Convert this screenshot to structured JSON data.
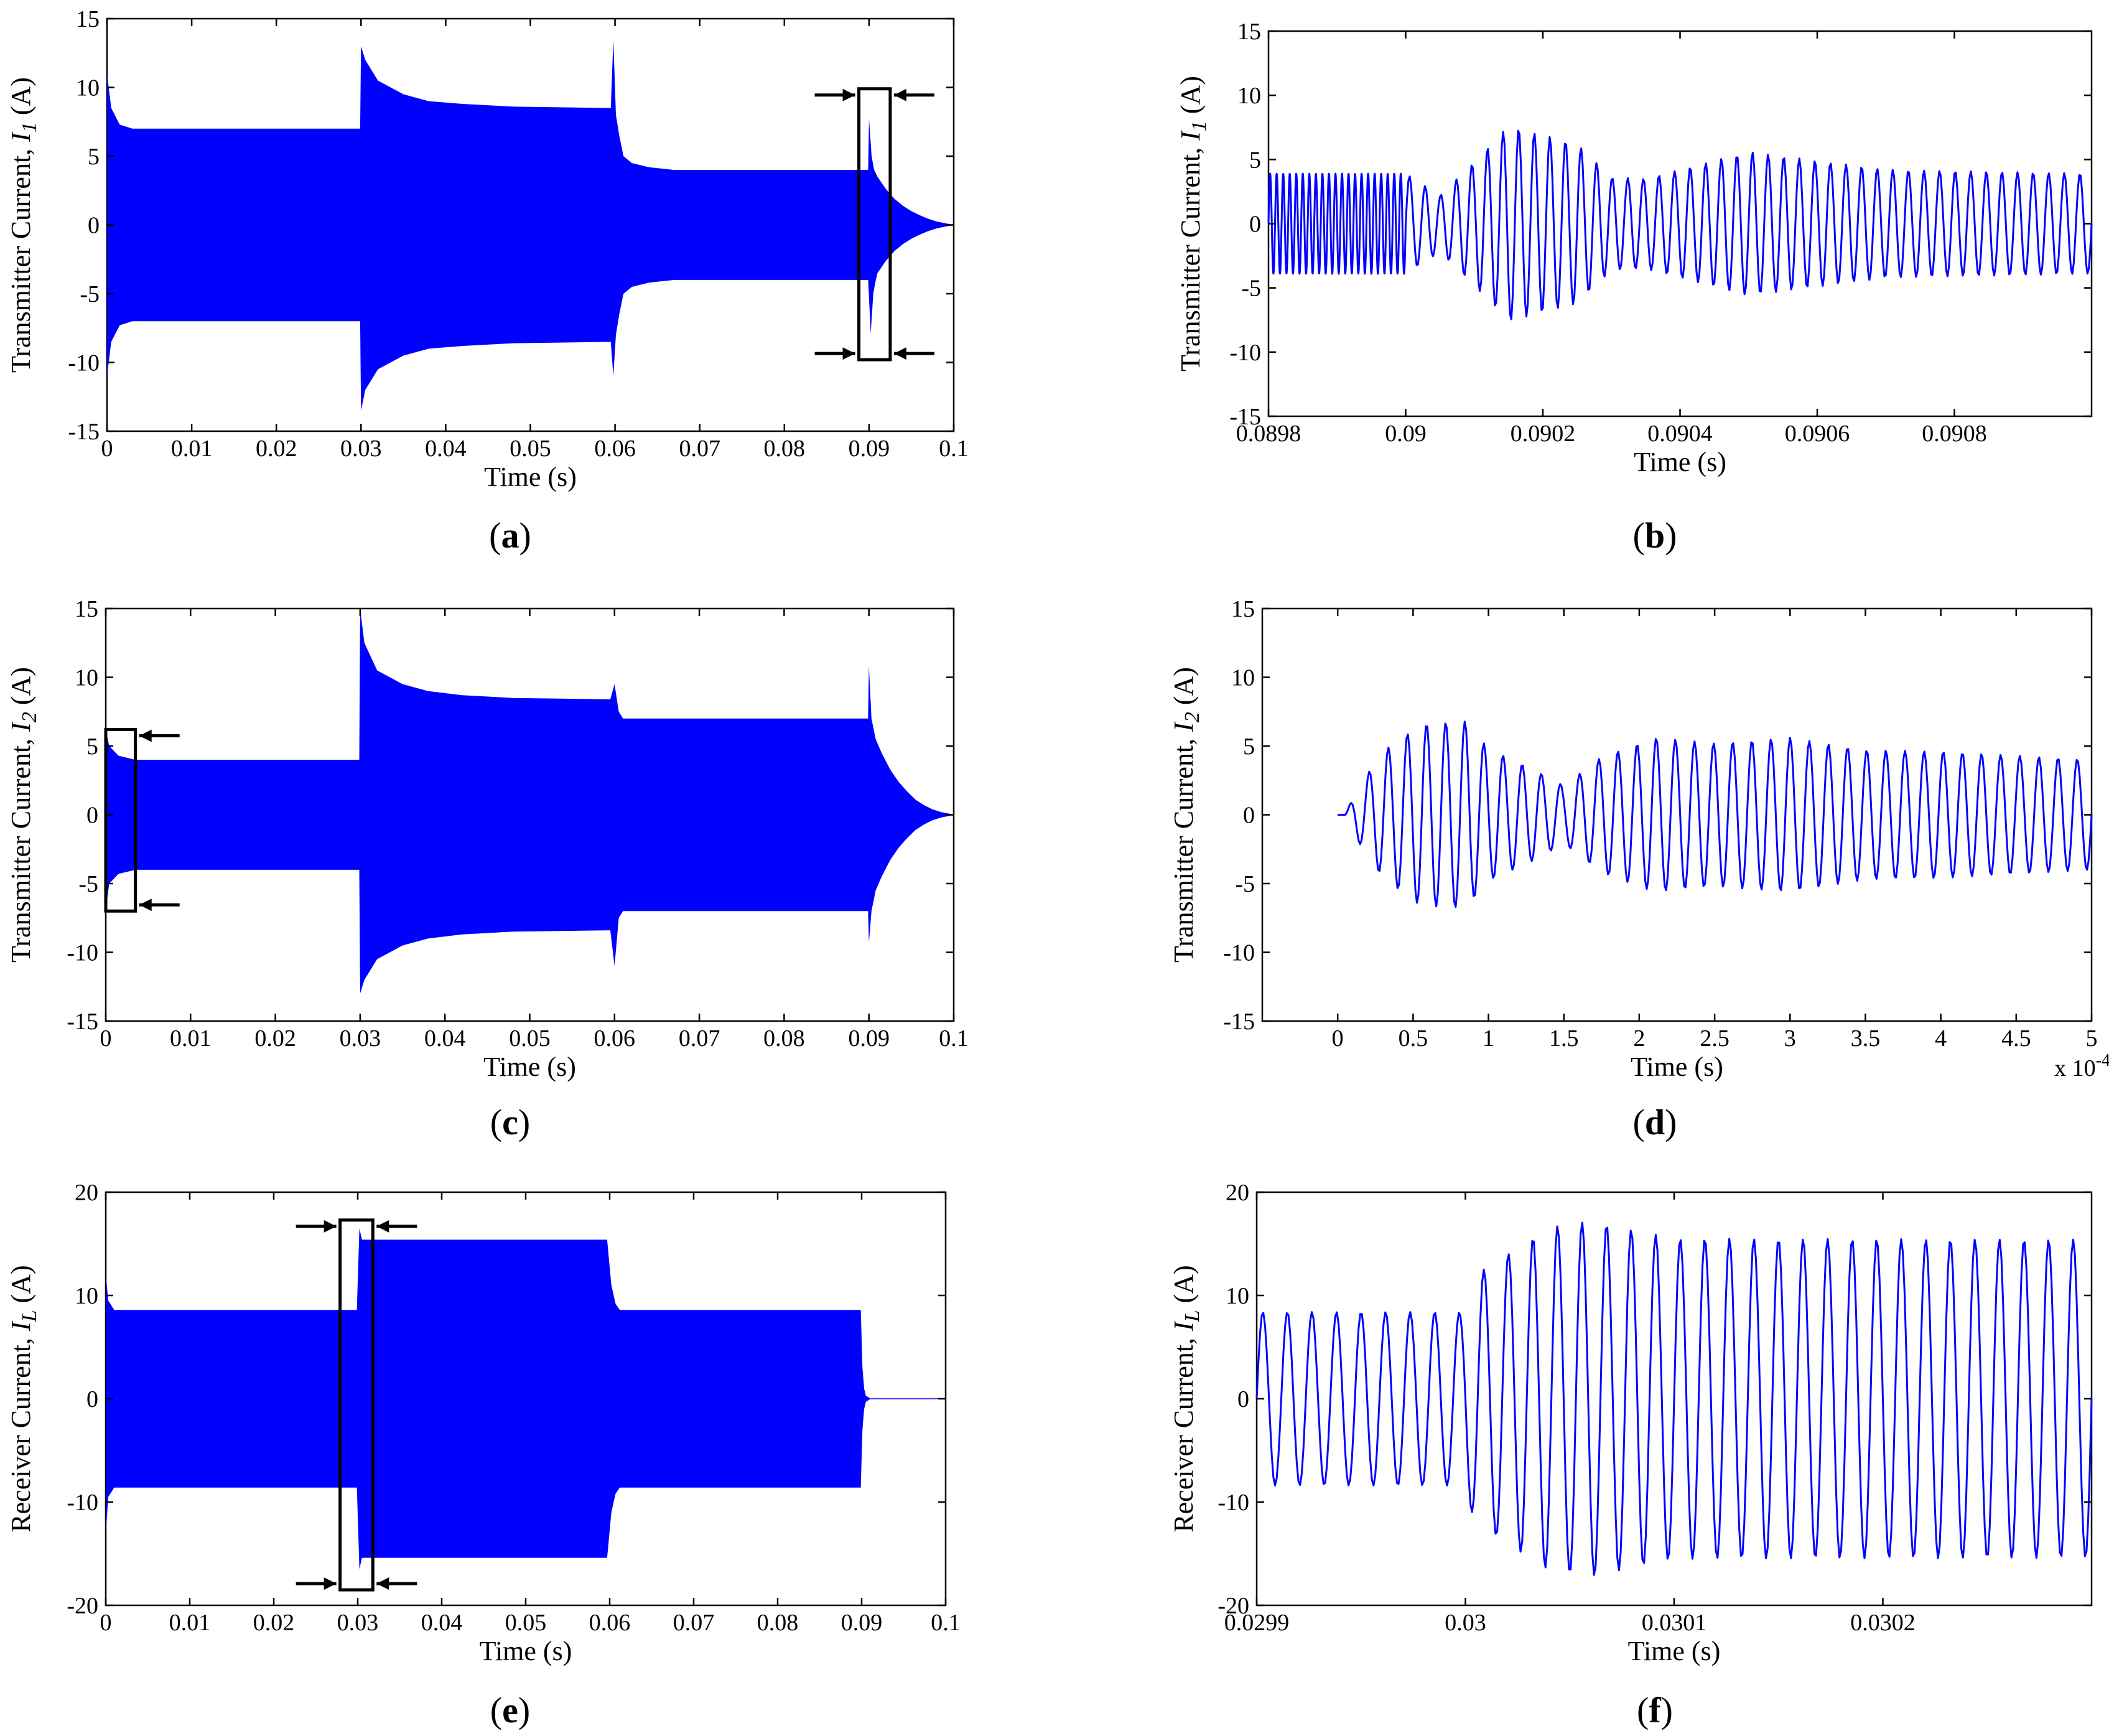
{
  "figure": {
    "colors": {
      "signal": "#0000ff",
      "axes": "#000000",
      "background": "#ffffff"
    }
  },
  "chart_data": [
    {
      "id": "a",
      "type": "line",
      "panel_label": "a",
      "title": "",
      "xlabel": "Time (s)",
      "ylabel_main": "Transmitter Current, ",
      "ylabel_var": "I",
      "ylabel_sub": "1",
      "ylabel_unit": " (A)",
      "xlim": [
        0,
        0.1
      ],
      "ylim": [
        -15,
        15
      ],
      "xticks": [
        0,
        0.01,
        0.02,
        0.03,
        0.04,
        0.05,
        0.06,
        0.07,
        0.08,
        0.09,
        0.1
      ],
      "xtick_labels": [
        "0",
        "0.01",
        "0.02",
        "0.03",
        "0.04",
        "0.05",
        "0.06",
        "0.07",
        "0.08",
        "0.09",
        "0.1"
      ],
      "yticks": [
        -15,
        -10,
        -5,
        0,
        5,
        10,
        15
      ],
      "ytick_labels": [
        "-15",
        "-10",
        "-5",
        "0",
        "5",
        "10",
        "15"
      ],
      "series": [
        {
          "name": "upper envelope",
          "x": [
            0,
            0.0005,
            0.0015,
            0.003,
            0.0299,
            0.03,
            0.0305,
            0.032,
            0.035,
            0.038,
            0.042,
            0.048,
            0.0595,
            0.0598,
            0.0601,
            0.0605,
            0.061,
            0.062,
            0.064,
            0.067,
            0.0899,
            0.09,
            0.0903,
            0.0906,
            0.091,
            0.092,
            0.093,
            0.094,
            0.095,
            0.096,
            0.097,
            0.098,
            0.099,
            0.1
          ],
          "values": [
            11,
            8.5,
            7.3,
            7,
            7,
            13,
            12,
            10.5,
            9.5,
            9,
            8.8,
            8.6,
            8.5,
            13.5,
            8,
            6.5,
            5,
            4.5,
            4.2,
            4,
            4,
            7.7,
            5,
            4,
            3.5,
            2.6,
            1.9,
            1.4,
            1,
            0.7,
            0.45,
            0.25,
            0.12,
            0
          ]
        },
        {
          "name": "lower envelope",
          "x": [
            0,
            0.0005,
            0.0015,
            0.003,
            0.0299,
            0.03,
            0.0305,
            0.032,
            0.035,
            0.038,
            0.042,
            0.048,
            0.0595,
            0.0598,
            0.0601,
            0.0605,
            0.061,
            0.062,
            0.064,
            0.067,
            0.0899,
            0.0902,
            0.0905,
            0.0908,
            0.091,
            0.092,
            0.093,
            0.094,
            0.095,
            0.096,
            0.097,
            0.098,
            0.099,
            0.1
          ],
          "values": [
            -11,
            -8.5,
            -7.3,
            -7,
            -7,
            -13.5,
            -12,
            -10.5,
            -9.5,
            -9,
            -8.8,
            -8.6,
            -8.5,
            -11,
            -8,
            -6.5,
            -5,
            -4.5,
            -4.2,
            -4,
            -4,
            -7.9,
            -5,
            -4,
            -3.5,
            -2.6,
            -1.9,
            -1.4,
            -1,
            -0.7,
            -0.45,
            -0.25,
            -0.12,
            0
          ]
        }
      ],
      "zoom_box": {
        "x": [
          0.0888,
          0.0925
        ],
        "y": [
          -9.8,
          9.9
        ]
      }
    },
    {
      "id": "b",
      "type": "line",
      "panel_label": "b",
      "title": "",
      "xlabel": "Time (s)",
      "ylabel_main": "Transmitter Current, ",
      "ylabel_var": "I",
      "ylabel_sub": "1",
      "ylabel_unit": " (A)",
      "xlim": [
        0.0898,
        0.091
      ],
      "ylim": [
        -15,
        15
      ],
      "xticks": [
        0.0898,
        0.09,
        0.0902,
        0.0904,
        0.0906,
        0.0908
      ],
      "xtick_labels": [
        "0.0898",
        "0.09",
        "0.0902",
        "0.0904",
        "0.0906",
        "0.0908"
      ],
      "yticks": [
        -15,
        -10,
        -5,
        0,
        5,
        10,
        15
      ],
      "ytick_labels": [
        "-15",
        "-10",
        "-5",
        "0",
        "5",
        "10",
        "15"
      ],
      "signal": {
        "t0": 0.0898,
        "t1": 0.091,
        "segments": [
          {
            "t_start": 0.0898,
            "t_end": 0.09,
            "cycles": 21,
            "amp": [
              [
                0.0898,
                3.9
              ],
              [
                0.09,
                3.9
              ]
            ]
          },
          {
            "t_start": 0.09,
            "t_end": 0.091,
            "cycles": 44,
            "amp": [
              [
                0.09,
                3.9
              ],
              [
                0.09005,
                2.2
              ],
              [
                0.0901,
                4.8
              ],
              [
                0.09015,
                7.6
              ],
              [
                0.09025,
                6.2
              ],
              [
                0.0903,
                3.6
              ],
              [
                0.09035,
                3.5
              ],
              [
                0.0905,
                5.6
              ],
              [
                0.0907,
                4.2
              ],
              [
                0.091,
                3.9
              ]
            ]
          }
        ]
      }
    },
    {
      "id": "c",
      "type": "line",
      "panel_label": "c",
      "title": "",
      "xlabel": "Time (s)",
      "ylabel_main": "Transmitter Current, ",
      "ylabel_var": "I",
      "ylabel_sub": "2",
      "ylabel_unit": " (A)",
      "xlim": [
        0,
        0.1
      ],
      "ylim": [
        -15,
        15
      ],
      "xticks": [
        0,
        0.01,
        0.02,
        0.03,
        0.04,
        0.05,
        0.06,
        0.07,
        0.08,
        0.09,
        0.1
      ],
      "xtick_labels": [
        "0",
        "0.01",
        "0.02",
        "0.03",
        "0.04",
        "0.05",
        "0.06",
        "0.07",
        "0.08",
        "0.09",
        "0.1"
      ],
      "yticks": [
        -15,
        -10,
        -5,
        0,
        5,
        10,
        15
      ],
      "ytick_labels": [
        "-15",
        "-10",
        "-5",
        "0",
        "5",
        "10",
        "15"
      ],
      "series": [
        {
          "name": "upper envelope",
          "x": [
            0,
            0.0004,
            0.0015,
            0.0035,
            0.0299,
            0.03,
            0.0305,
            0.032,
            0.035,
            0.038,
            0.042,
            0.048,
            0.0595,
            0.06,
            0.0605,
            0.061,
            0.062,
            0.0899,
            0.09,
            0.0903,
            0.0908,
            0.0915,
            0.0925,
            0.0935,
            0.0945,
            0.0955,
            0.0965,
            0.0975,
            0.0985,
            0.0995,
            0.1
          ],
          "values": [
            6.2,
            5,
            4.3,
            4,
            4,
            15,
            12.5,
            10.5,
            9.5,
            9,
            8.7,
            8.5,
            8.4,
            9.5,
            7.5,
            7,
            7,
            7,
            10.8,
            7,
            5.5,
            4.5,
            3.3,
            2.4,
            1.7,
            1.1,
            0.7,
            0.4,
            0.2,
            0.08,
            0
          ]
        },
        {
          "name": "lower envelope",
          "x": [
            0,
            0.0004,
            0.0015,
            0.0035,
            0.0299,
            0.03,
            0.0305,
            0.032,
            0.035,
            0.038,
            0.042,
            0.048,
            0.0595,
            0.06,
            0.0605,
            0.061,
            0.062,
            0.0899,
            0.09,
            0.0903,
            0.0908,
            0.0915,
            0.0925,
            0.0935,
            0.0945,
            0.0955,
            0.0965,
            0.0975,
            0.0985,
            0.0995,
            0.1
          ],
          "values": [
            -7,
            -5,
            -4.3,
            -4,
            -4,
            -13,
            -12,
            -10.5,
            -9.5,
            -9,
            -8.7,
            -8.5,
            -8.4,
            -11,
            -7.5,
            -7,
            -7,
            -7,
            -9.3,
            -7,
            -5.5,
            -4.5,
            -3.3,
            -2.4,
            -1.7,
            -1.1,
            -0.7,
            -0.4,
            -0.2,
            -0.08,
            0
          ]
        }
      ],
      "zoom_box": {
        "x": [
          0,
          0.0035
        ],
        "y": [
          -7,
          6.2
        ]
      }
    },
    {
      "id": "d",
      "type": "line",
      "panel_label": "d",
      "title": "",
      "xlabel": "Time (s)",
      "ylabel_main": "Transmitter Current, ",
      "ylabel_var": "I",
      "ylabel_sub": "2",
      "ylabel_unit": " (A)",
      "xlim": [
        -0.5,
        5
      ],
      "ylim": [
        -15,
        15
      ],
      "xticks": [
        0,
        0.5,
        1,
        1.5,
        2,
        2.5,
        3,
        3.5,
        4,
        4.5,
        5
      ],
      "xtick_labels": [
        "0",
        "0.5",
        "1",
        "1.5",
        "2",
        "2.5",
        "3",
        "3.5",
        "4",
        "4.5",
        "5"
      ],
      "yticks": [
        -15,
        -10,
        -5,
        0,
        5,
        10,
        15
      ],
      "ytick_labels": [
        "-15",
        "-10",
        "-5",
        "0",
        "5",
        "10",
        "15"
      ],
      "x_multiplier": "x 10",
      "x_multiplier_exp": "-4",
      "signal": {
        "t0": 0,
        "t1": 5,
        "segments": [
          {
            "t_start": 0,
            "t_end": 0.05,
            "cycles": 0,
            "amp": [
              [
                0,
                0
              ],
              [
                0.05,
                0
              ]
            ]
          },
          {
            "t_start": 0.05,
            "t_end": 5,
            "cycles": 39,
            "amp": [
              [
                0.05,
                0.1
              ],
              [
                0.15,
                2.2
              ],
              [
                0.3,
                4.6
              ],
              [
                0.55,
                6.6
              ],
              [
                0.85,
                6.8
              ],
              [
                1,
                4.8
              ],
              [
                1.3,
                3.3
              ],
              [
                1.5,
                2.1
              ],
              [
                1.75,
                4.2
              ],
              [
                2.1,
                5.6
              ],
              [
                2.5,
                5.2
              ],
              [
                3,
                5.6
              ],
              [
                3.5,
                4.7
              ],
              [
                4,
                4.6
              ],
              [
                5,
                4
              ]
            ]
          }
        ]
      }
    },
    {
      "id": "e",
      "type": "line",
      "panel_label": "e",
      "title": "",
      "xlabel": "Time (s)",
      "ylabel_main": "Receiver Current, ",
      "ylabel_var": "I",
      "ylabel_sub": "L",
      "ylabel_unit": " (A)",
      "xlim": [
        0,
        0.1
      ],
      "ylim": [
        -20,
        20
      ],
      "xticks": [
        0,
        0.01,
        0.02,
        0.03,
        0.04,
        0.05,
        0.06,
        0.07,
        0.08,
        0.09,
        0.1
      ],
      "xtick_labels": [
        "0",
        "0.01",
        "0.02",
        "0.03",
        "0.04",
        "0.05",
        "0.06",
        "0.07",
        "0.08",
        "0.09",
        "0.1"
      ],
      "yticks": [
        -20,
        -10,
        0,
        10,
        20
      ],
      "ytick_labels": [
        "-20",
        "-10",
        "0",
        "10",
        "20"
      ],
      "series": [
        {
          "name": "upper envelope",
          "x": [
            0,
            0.0003,
            0.001,
            0.0299,
            0.0302,
            0.0305,
            0.0597,
            0.0602,
            0.0607,
            0.0612,
            0.0899,
            0.0901,
            0.0903,
            0.0905,
            0.091,
            0.1
          ],
          "values": [
            12,
            9.5,
            8.6,
            8.6,
            16.5,
            15.4,
            15.4,
            11,
            9.2,
            8.6,
            8.6,
            3,
            1,
            0.3,
            0.05,
            0.05
          ]
        },
        {
          "name": "lower envelope",
          "x": [
            0,
            0.0003,
            0.001,
            0.0299,
            0.0302,
            0.0305,
            0.0597,
            0.0602,
            0.0607,
            0.0612,
            0.0899,
            0.0901,
            0.0903,
            0.0905,
            0.091,
            0.1
          ],
          "values": [
            -13,
            -9.5,
            -8.6,
            -8.6,
            -16.5,
            -15.4,
            -15.4,
            -11,
            -9.2,
            -8.6,
            -8.6,
            -3,
            -1,
            -0.3,
            -0.05,
            -0.05
          ]
        }
      ],
      "zoom_box": {
        "x": [
          0.0279,
          0.0318
        ],
        "y": [
          -18.5,
          17.3
        ]
      }
    },
    {
      "id": "f",
      "type": "line",
      "panel_label": "f",
      "title": "",
      "xlabel": "Time (s)",
      "ylabel_main": "Receiver Current, ",
      "ylabel_var": "I",
      "ylabel_sub": "L",
      "ylabel_unit": " (A)",
      "xlim": [
        0.0299,
        0.0303
      ],
      "ylim": [
        -20,
        20
      ],
      "xticks": [
        0.0299,
        0.03,
        0.0301,
        0.0302
      ],
      "xtick_labels": [
        "0.0299",
        "0.03",
        "0.0301",
        "0.0302"
      ],
      "yticks": [
        -20,
        -10,
        0,
        10,
        20
      ],
      "ytick_labels": [
        "-20",
        "-10",
        "0",
        "10",
        "20"
      ],
      "signal": {
        "t0": 0.0299,
        "t1": 0.0303,
        "segments": [
          {
            "t_start": 0.0299,
            "t_end": 0.0303,
            "cycles": 34,
            "amp": [
              [
                0.0299,
                8.4
              ],
              [
                0.029998,
                8.4
              ],
              [
                0.030005,
                12
              ],
              [
                0.03004,
                16.6
              ],
              [
                0.03006,
                17.2
              ],
              [
                0.0301,
                15.5
              ],
              [
                0.0303,
                15.4
              ]
            ]
          }
        ]
      }
    }
  ]
}
